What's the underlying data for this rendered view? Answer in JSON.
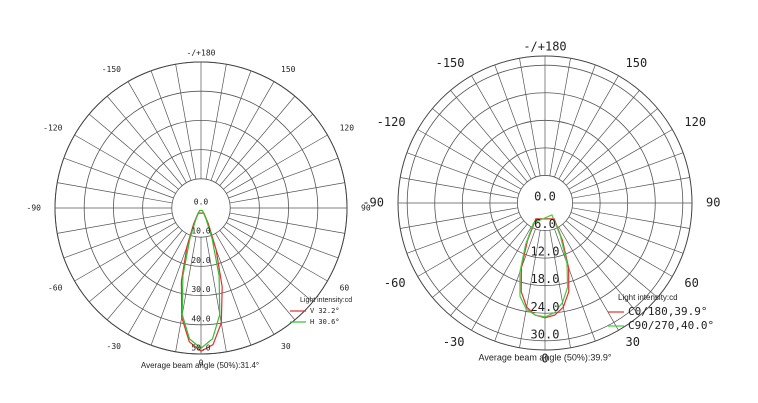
{
  "chart_data": [
    {
      "type": "polar",
      "angle_ticks": [
        {
          "value": 180,
          "label": "-/+180"
        },
        -150,
        150,
        -120,
        120,
        -90,
        90,
        -60,
        60,
        -30,
        30,
        0
      ],
      "rlim": [
        0,
        50
      ],
      "rticks": [
        {
          "value": 0,
          "label": "0.0"
        },
        {
          "value": 10,
          "label": "10.0"
        },
        {
          "value": 20,
          "label": "20.0"
        },
        {
          "value": 30,
          "label": "30.0"
        },
        {
          "value": 40,
          "label": "40.0"
        },
        {
          "value": 50,
          "label": "50.0"
        }
      ],
      "x": [
        -30,
        -25,
        -20,
        -15,
        -10,
        -5,
        0,
        5,
        10,
        15,
        20,
        25,
        30
      ],
      "series": [
        {
          "name": "V 32.2°",
          "color": "#e03030",
          "values": [
            2,
            6,
            14,
            26,
            38,
            46,
            49,
            47,
            40,
            28,
            15,
            6,
            2
          ]
        },
        {
          "name": "H 30.6°",
          "color": "#30c030",
          "values": [
            1,
            4,
            11,
            24,
            37,
            45,
            48,
            45,
            37,
            24,
            11,
            4,
            1
          ]
        }
      ],
      "legend_title": "Light intensity:cd",
      "caption": "Average beam angle (50%):31.4°"
    },
    {
      "type": "polar",
      "angle_ticks": [
        {
          "value": 180,
          "label": "-/+180"
        },
        -150,
        150,
        -120,
        120,
        -90,
        90,
        -60,
        60,
        -30,
        30,
        0
      ],
      "rlim": [
        0,
        32
      ],
      "rticks": [
        {
          "value": 0,
          "label": "0.0"
        },
        {
          "value": 6,
          "label": "6.0"
        },
        {
          "value": 12,
          "label": "12.0"
        },
        {
          "value": 18,
          "label": "18.0"
        },
        {
          "value": 24,
          "label": "24.0"
        },
        {
          "value": 30,
          "label": "30.0"
        }
      ],
      "x": [
        -30,
        -25,
        -20,
        -15,
        -10,
        -5,
        0,
        5,
        10,
        15,
        20,
        25,
        30
      ],
      "series": [
        {
          "name": "C0/180,39.9°",
          "color": "#e03030",
          "values": [
            4,
            9,
            15,
            20,
            23,
            24.5,
            25,
            24.5,
            23,
            20,
            15,
            9,
            4
          ]
        },
        {
          "name": "C90/270,40.0°",
          "color": "#40d040",
          "values": [
            5,
            10,
            16,
            21,
            23.5,
            24.5,
            24.8,
            24,
            22,
            19,
            14,
            8,
            3
          ]
        }
      ],
      "legend_title": "Light intensity:cd",
      "caption": "Average beam angle (50%):39.9°"
    }
  ]
}
